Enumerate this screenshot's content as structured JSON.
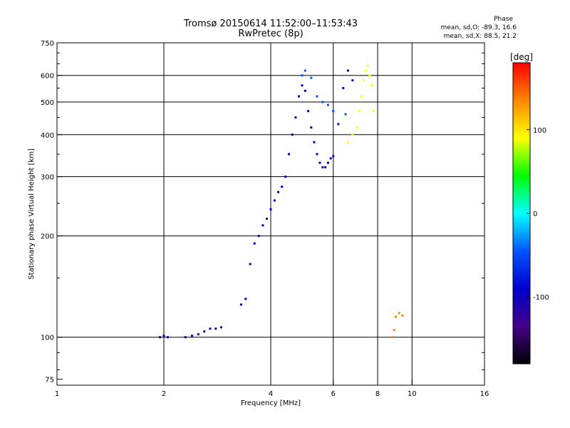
{
  "header": {
    "title": "Tromsø 20150614 11:52:00–11:53:43",
    "subtitle": "RwPretec (8p)",
    "phase_label": "Phase",
    "stat_o": "mean, sd,O: -89.3, 16.6",
    "stat_x": "mean, sd,X: 88.5, 21.2"
  },
  "chart_data": {
    "type": "scatter",
    "xlabel": "Frequency [MHz]",
    "ylabel": "Stationary phase Virtual Height [km]",
    "x_scale": "log2",
    "y_scale": "log",
    "xlim": [
      1,
      16
    ],
    "ylim": [
      72,
      750
    ],
    "x_ticks": [
      1,
      2,
      4,
      6,
      8,
      10,
      16
    ],
    "y_ticks": [
      75,
      100,
      200,
      300,
      400,
      500,
      600,
      750
    ],
    "grid_x": [
      2,
      4,
      6,
      8,
      10
    ],
    "grid_y": [
      100,
      200,
      300,
      400,
      500,
      600
    ],
    "colorbar": {
      "label": "[deg]",
      "ticks": [
        100,
        0,
        -100
      ],
      "range": [
        -180,
        180
      ],
      "colors": [
        "#ff0000",
        "#ff8800",
        "#ffff00",
        "#00ff00",
        "#00ffff",
        "#0055ff",
        "#0000cc",
        "#440088",
        "#000000"
      ]
    },
    "series": [
      {
        "phase": -95,
        "points": [
          [
            1.95,
            100
          ],
          [
            2.0,
            101
          ],
          [
            2.05,
            100
          ],
          [
            2.3,
            100
          ],
          [
            2.4,
            101
          ],
          [
            2.5,
            102
          ],
          [
            2.6,
            104
          ],
          [
            2.7,
            106
          ],
          [
            2.8,
            106
          ],
          [
            2.9,
            107
          ],
          [
            3.3,
            125
          ],
          [
            3.4,
            130
          ],
          [
            3.5,
            165
          ],
          [
            3.6,
            190
          ],
          [
            3.7,
            200
          ],
          [
            3.8,
            215
          ],
          [
            3.9,
            225
          ],
          [
            4.0,
            240
          ],
          [
            4.1,
            255
          ],
          [
            4.2,
            270
          ],
          [
            4.3,
            280
          ],
          [
            4.4,
            300
          ],
          [
            4.5,
            350
          ],
          [
            4.6,
            400
          ],
          [
            4.7,
            450
          ],
          [
            4.8,
            520
          ],
          [
            4.9,
            560
          ],
          [
            5.0,
            540
          ],
          [
            5.1,
            470
          ],
          [
            5.2,
            420
          ],
          [
            5.3,
            380
          ],
          [
            5.4,
            350
          ],
          [
            5.5,
            330
          ],
          [
            5.6,
            320
          ],
          [
            5.7,
            320
          ],
          [
            5.8,
            330
          ],
          [
            5.9,
            340
          ],
          [
            6.0,
            345
          ],
          [
            6.2,
            430
          ],
          [
            6.4,
            550
          ],
          [
            6.6,
            620
          ],
          [
            6.8,
            580
          ]
        ]
      },
      {
        "phase": -60,
        "points": [
          [
            4.9,
            600
          ],
          [
            5.0,
            620
          ],
          [
            5.2,
            590
          ],
          [
            5.4,
            520
          ],
          [
            5.6,
            500
          ],
          [
            5.8,
            490
          ],
          [
            6.0,
            470
          ],
          [
            6.5,
            460
          ]
        ]
      },
      {
        "phase": 100,
        "points": [
          [
            6.6,
            380
          ],
          [
            6.8,
            400
          ],
          [
            7.0,
            420
          ],
          [
            7.1,
            470
          ],
          [
            7.2,
            520
          ],
          [
            7.3,
            580
          ],
          [
            7.4,
            620
          ],
          [
            7.5,
            640
          ],
          [
            7.6,
            600
          ],
          [
            7.7,
            560
          ],
          [
            7.8,
            470
          ]
        ]
      },
      {
        "phase": 150,
        "points": [
          [
            8.8,
            100
          ],
          [
            8.9,
            105
          ],
          [
            9.0,
            115
          ],
          [
            9.2,
            118
          ],
          [
            9.4,
            116
          ]
        ]
      }
    ]
  }
}
